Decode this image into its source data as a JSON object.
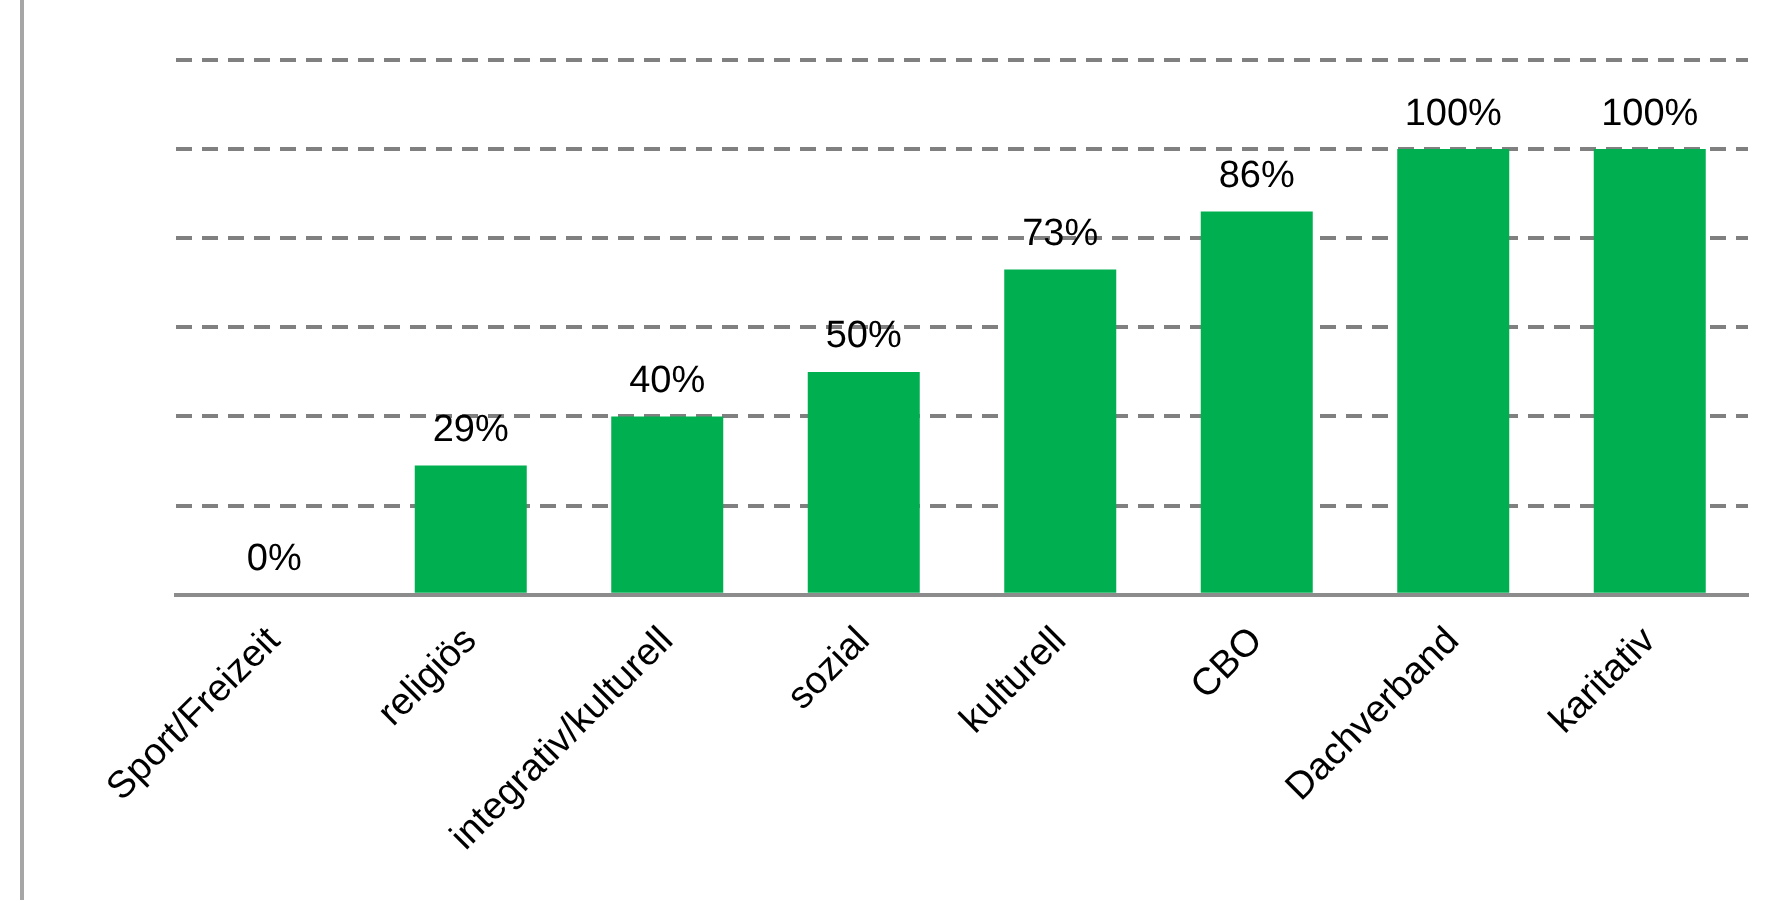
{
  "chart_data": {
    "type": "bar",
    "categories": [
      "Sport/Freizeit",
      "religiös",
      "integrativ/kulturell",
      "sozial",
      "kulturell",
      "CBO",
      "Dachverband",
      "karitativ"
    ],
    "values": [
      0,
      29,
      40,
      50,
      73,
      86,
      100,
      100
    ],
    "value_labels": [
      "0%",
      "29%",
      "40%",
      "50%",
      "73%",
      "86%",
      "100%",
      "100%"
    ],
    "color": "#00b050",
    "ylim": [
      0,
      120
    ],
    "yticks": [
      {
        "value": 0,
        "label": null
      },
      {
        "value": 20,
        "label": null
      },
      {
        "value": 40,
        "label": null
      },
      {
        "value": 60,
        "label": null
      },
      {
        "value": 80,
        "label": null
      },
      {
        "value": 100,
        "label": null
      },
      {
        "value": 120,
        "label": null
      }
    ],
    "grid": "y",
    "line_style": "dashed",
    "tick_labels": "x",
    "legend": false
  }
}
